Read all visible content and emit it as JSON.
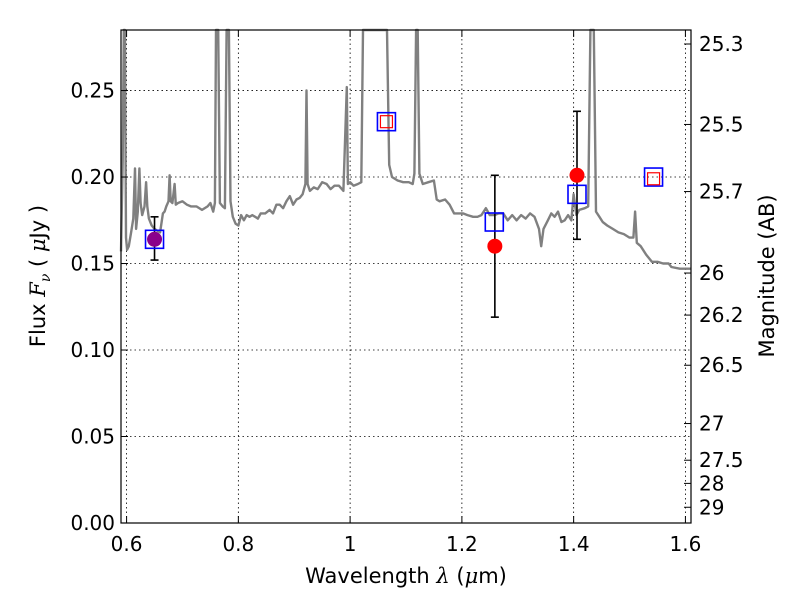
{
  "chart_data": {
    "type": "scatter",
    "xlabel": "Wavelength  λ (μm)",
    "ylabel": "Flux  Fν  ( μJy )",
    "ylabel_right": "Magnitude (AB)",
    "xlim": [
      0.59,
      1.61
    ],
    "ylim": [
      0.0,
      0.285
    ],
    "x_ticks": [
      0.6,
      0.8,
      1.0,
      1.2,
      1.4,
      1.6
    ],
    "x_tick_labels": [
      "0.6",
      "0.8",
      "1",
      "1.2",
      "1.4",
      "1.6"
    ],
    "y_ticks": [
      0.0,
      0.05,
      0.1,
      0.15,
      0.2,
      0.25
    ],
    "y_tick_labels": [
      "0.00",
      "0.05",
      "0.10",
      "0.15",
      "0.20",
      "0.25"
    ],
    "right_axis_ticks": [
      {
        "flux": 0.2769,
        "label": "25.3"
      },
      {
        "flux": 0.2304,
        "label": "25.5"
      },
      {
        "flux": 0.1916,
        "label": "25.7"
      },
      {
        "flux": 0.1445,
        "label": "26"
      },
      {
        "flux": 0.1202,
        "label": "26.2"
      },
      {
        "flux": 0.0912,
        "label": "26.5"
      },
      {
        "flux": 0.0575,
        "label": "27"
      },
      {
        "flux": 0.0363,
        "label": "27.5"
      },
      {
        "flux": 0.0229,
        "label": "28"
      },
      {
        "flux": 0.0091,
        "label": "29"
      }
    ],
    "grid": true,
    "series": [
      {
        "kind": "line",
        "color": "#808080",
        "points": [
          [
            0.59,
            0.157
          ],
          [
            0.593,
            0.21
          ],
          [
            0.595,
            0.285
          ],
          [
            0.597,
            0.285
          ],
          [
            0.599,
            0.165
          ],
          [
            0.601,
            0.158
          ],
          [
            0.604,
            0.16
          ],
          [
            0.608,
            0.168
          ],
          [
            0.612,
            0.176
          ],
          [
            0.615,
            0.205
          ],
          [
            0.617,
            0.17
          ],
          [
            0.62,
            0.18
          ],
          [
            0.623,
            0.205
          ],
          [
            0.625,
            0.185
          ],
          [
            0.628,
            0.178
          ],
          [
            0.632,
            0.183
          ],
          [
            0.635,
            0.197
          ],
          [
            0.637,
            0.183
          ],
          [
            0.64,
            0.176
          ],
          [
            0.645,
            0.172
          ],
          [
            0.65,
            0.17
          ],
          [
            0.655,
            0.169
          ],
          [
            0.66,
            0.168
          ],
          [
            0.665,
            0.179
          ],
          [
            0.668,
            0.18
          ],
          [
            0.671,
            0.183
          ],
          [
            0.675,
            0.186
          ],
          [
            0.677,
            0.201
          ],
          [
            0.679,
            0.186
          ],
          [
            0.682,
            0.185
          ],
          [
            0.686,
            0.196
          ],
          [
            0.688,
            0.184
          ],
          [
            0.692,
            0.185
          ],
          [
            0.7,
            0.186
          ],
          [
            0.708,
            0.184
          ],
          [
            0.715,
            0.183
          ],
          [
            0.725,
            0.183
          ],
          [
            0.735,
            0.181
          ],
          [
            0.745,
            0.183
          ],
          [
            0.75,
            0.185
          ],
          [
            0.755,
            0.18
          ],
          [
            0.758,
            0.185
          ],
          [
            0.76,
            0.285
          ],
          [
            0.764,
            0.285
          ],
          [
            0.767,
            0.185
          ],
          [
            0.772,
            0.183
          ],
          [
            0.776,
            0.182
          ],
          [
            0.779,
            0.285
          ],
          [
            0.783,
            0.285
          ],
          [
            0.786,
            0.186
          ],
          [
            0.79,
            0.177
          ],
          [
            0.795,
            0.173
          ],
          [
            0.8,
            0.172
          ],
          [
            0.805,
            0.178
          ],
          [
            0.81,
            0.175
          ],
          [
            0.815,
            0.178
          ],
          [
            0.82,
            0.177
          ],
          [
            0.825,
            0.178
          ],
          [
            0.83,
            0.177
          ],
          [
            0.835,
            0.176
          ],
          [
            0.84,
            0.179
          ],
          [
            0.848,
            0.179
          ],
          [
            0.856,
            0.181
          ],
          [
            0.862,
            0.179
          ],
          [
            0.868,
            0.184
          ],
          [
            0.874,
            0.184
          ],
          [
            0.88,
            0.182
          ],
          [
            0.886,
            0.186
          ],
          [
            0.892,
            0.189
          ],
          [
            0.898,
            0.184
          ],
          [
            0.904,
            0.187
          ],
          [
            0.91,
            0.188
          ],
          [
            0.915,
            0.19
          ],
          [
            0.92,
            0.196
          ],
          [
            0.922,
            0.25
          ],
          [
            0.924,
            0.196
          ],
          [
            0.928,
            0.192
          ],
          [
            0.935,
            0.194
          ],
          [
            0.942,
            0.193
          ],
          [
            0.95,
            0.197
          ],
          [
            0.958,
            0.196
          ],
          [
            0.965,
            0.193
          ],
          [
            0.972,
            0.195
          ],
          [
            0.98,
            0.195
          ],
          [
            0.988,
            0.192
          ],
          [
            0.994,
            0.252
          ],
          [
            0.996,
            0.196
          ],
          [
            1.0,
            0.197
          ],
          [
            1.006,
            0.195
          ],
          [
            1.014,
            0.196
          ],
          [
            1.02,
            0.197
          ],
          [
            1.023,
            0.285
          ],
          [
            1.03,
            0.285
          ],
          [
            1.06,
            0.285
          ],
          [
            1.066,
            0.285
          ],
          [
            1.07,
            0.207
          ],
          [
            1.075,
            0.2
          ],
          [
            1.085,
            0.198
          ],
          [
            1.095,
            0.197
          ],
          [
            1.105,
            0.197
          ],
          [
            1.112,
            0.196
          ],
          [
            1.115,
            0.202
          ],
          [
            1.118,
            0.285
          ],
          [
            1.121,
            0.285
          ],
          [
            1.124,
            0.202
          ],
          [
            1.13,
            0.196
          ],
          [
            1.14,
            0.197
          ],
          [
            1.15,
            0.198
          ],
          [
            1.155,
            0.187
          ],
          [
            1.16,
            0.186
          ],
          [
            1.17,
            0.187
          ],
          [
            1.178,
            0.184
          ],
          [
            1.186,
            0.179
          ],
          [
            1.194,
            0.179
          ],
          [
            1.202,
            0.179
          ],
          [
            1.21,
            0.178
          ],
          [
            1.22,
            0.177
          ],
          [
            1.228,
            0.177
          ],
          [
            1.235,
            0.178
          ],
          [
            1.243,
            0.182
          ],
          [
            1.25,
            0.178
          ],
          [
            1.258,
            0.178
          ],
          [
            1.266,
            0.179
          ],
          [
            1.274,
            0.179
          ],
          [
            1.282,
            0.175
          ],
          [
            1.29,
            0.178
          ],
          [
            1.298,
            0.175
          ],
          [
            1.306,
            0.178
          ],
          [
            1.314,
            0.176
          ],
          [
            1.322,
            0.179
          ],
          [
            1.33,
            0.177
          ],
          [
            1.338,
            0.17
          ],
          [
            1.342,
            0.16
          ],
          [
            1.346,
            0.17
          ],
          [
            1.354,
            0.175
          ],
          [
            1.36,
            0.179
          ],
          [
            1.366,
            0.177
          ],
          [
            1.372,
            0.18
          ],
          [
            1.378,
            0.174
          ],
          [
            1.384,
            0.175
          ],
          [
            1.39,
            0.178
          ],
          [
            1.396,
            0.175
          ],
          [
            1.4,
            0.19
          ],
          [
            1.405,
            0.178
          ],
          [
            1.41,
            0.181
          ],
          [
            1.42,
            0.182
          ],
          [
            1.426,
            0.183
          ],
          [
            1.43,
            0.285
          ],
          [
            1.436,
            0.285
          ],
          [
            1.44,
            0.18
          ],
          [
            1.446,
            0.177
          ],
          [
            1.452,
            0.174
          ],
          [
            1.46,
            0.172
          ],
          [
            1.47,
            0.17
          ],
          [
            1.48,
            0.168
          ],
          [
            1.49,
            0.167
          ],
          [
            1.5,
            0.165
          ],
          [
            1.507,
            0.165
          ],
          [
            1.51,
            0.18
          ],
          [
            1.513,
            0.162
          ],
          [
            1.52,
            0.16
          ],
          [
            1.53,
            0.155
          ],
          [
            1.54,
            0.151
          ],
          [
            1.55,
            0.151
          ],
          [
            1.56,
            0.15
          ],
          [
            1.57,
            0.15
          ],
          [
            1.575,
            0.148
          ],
          [
            1.59,
            0.147
          ],
          [
            1.61,
            0.147
          ]
        ]
      },
      {
        "kind": "markers",
        "marker": "square-open",
        "color": "#0000ff",
        "points": [
          [
            0.65,
            0.164
          ],
          [
            1.065,
            0.232
          ],
          [
            1.258,
            0.174
          ],
          [
            1.406,
            0.19
          ],
          [
            1.543,
            0.2
          ]
        ]
      },
      {
        "kind": "markers",
        "marker": "square-open-small",
        "color": "#ff0000",
        "points": [
          [
            1.065,
            0.232
          ],
          [
            1.543,
            0.199
          ]
        ]
      },
      {
        "kind": "markers",
        "marker": "circle-filled",
        "color": "#ff0000",
        "points": [
          [
            1.259,
            0.16
          ],
          [
            1.406,
            0.201
          ]
        ]
      },
      {
        "kind": "markers",
        "marker": "circle-filled",
        "color": "#8b008b",
        "points": [
          [
            0.65,
            0.164
          ]
        ]
      },
      {
        "kind": "errorbars",
        "color": "#000000",
        "points": [
          {
            "x": 0.65,
            "y": 0.164,
            "lo": 0.152,
            "hi": 0.177
          },
          {
            "x": 1.259,
            "y": 0.16,
            "lo": 0.119,
            "hi": 0.201
          },
          {
            "x": 1.406,
            "y": 0.201,
            "lo": 0.164,
            "hi": 0.238
          }
        ]
      }
    ]
  }
}
